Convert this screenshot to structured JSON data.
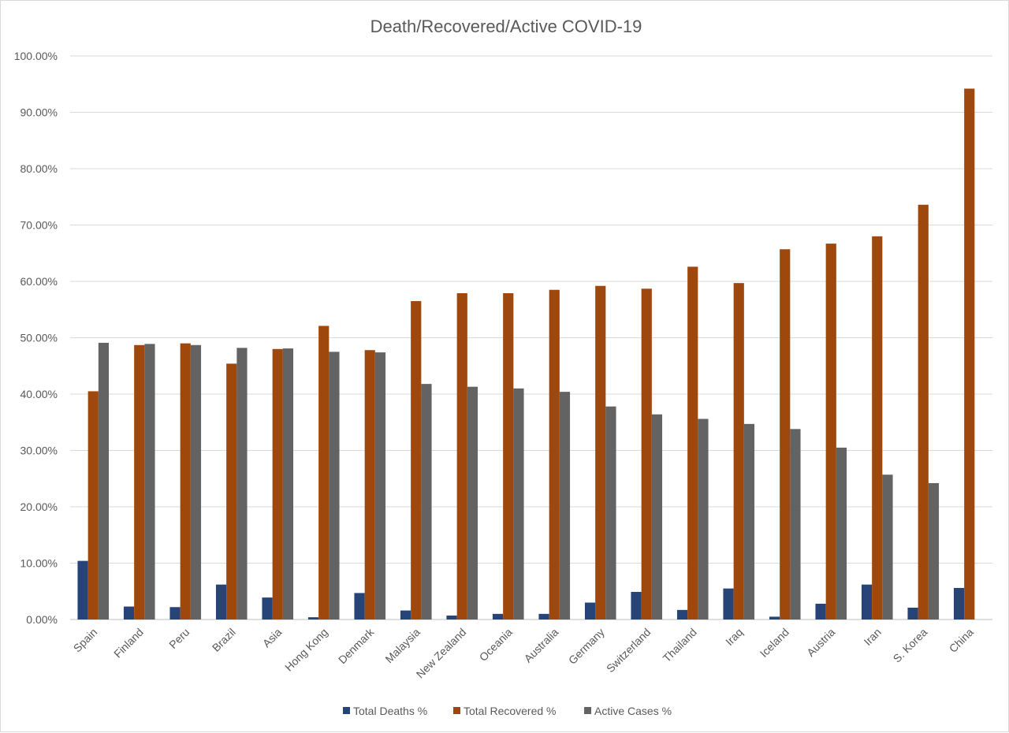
{
  "chart_data": {
    "type": "bar",
    "title": "Death/Recovered/Active  COVID-19",
    "xlabel": "",
    "ylabel": "",
    "ylim": [
      0,
      100
    ],
    "y_tick_labels": [
      "0.00%",
      "10.00%",
      "20.00%",
      "30.00%",
      "40.00%",
      "50.00%",
      "60.00%",
      "70.00%",
      "80.00%",
      "90.00%",
      "100.00%"
    ],
    "grid": true,
    "legend_position": "bottom",
    "categories": [
      "Spain",
      "Finland",
      "Peru",
      "Brazil",
      "Asia",
      "Hong Kong",
      "Denmark",
      "Malaysia",
      "New Zealand",
      "Oceania",
      "Australia",
      "Germany",
      "Switzerland",
      "Thailand",
      "Iraq",
      "Iceland",
      "Austria",
      "Iran",
      "S. Korea",
      "China"
    ],
    "series": [
      {
        "name": "Total Deaths %",
        "color": "#264478",
        "values": [
          10.4,
          2.3,
          2.2,
          6.2,
          3.9,
          0.4,
          4.7,
          1.6,
          0.7,
          1.0,
          1.0,
          3.0,
          4.9,
          1.7,
          5.5,
          0.5,
          2.8,
          6.2,
          2.1,
          5.6
        ]
      },
      {
        "name": "Total Recovered %",
        "color": "#9E480E",
        "values": [
          40.5,
          48.7,
          49.0,
          45.4,
          48.0,
          52.1,
          47.8,
          56.5,
          57.9,
          57.9,
          58.5,
          59.2,
          58.7,
          62.6,
          59.7,
          65.7,
          66.7,
          68.0,
          73.6,
          94.2
        ]
      },
      {
        "name": "Active Cases %",
        "color": "#636363",
        "values": [
          49.1,
          48.9,
          48.7,
          48.2,
          48.1,
          47.5,
          47.4,
          41.8,
          41.3,
          41.0,
          40.4,
          37.8,
          36.4,
          35.6,
          34.7,
          33.8,
          30.5,
          25.7,
          24.2,
          0.0
        ]
      }
    ]
  }
}
